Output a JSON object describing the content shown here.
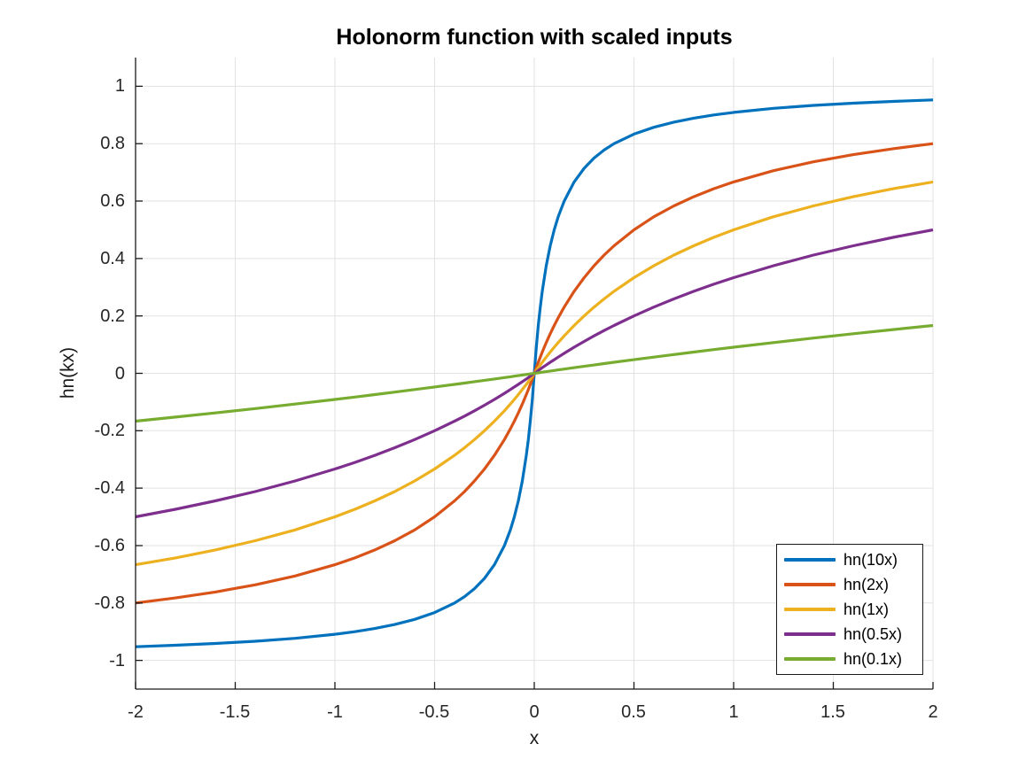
{
  "chart_data": {
    "type": "line",
    "title": "Holonorm function with scaled inputs",
    "xlabel": "x",
    "ylabel": "hn(kx)",
    "xlim": [
      -2,
      2
    ],
    "ylim": [
      -1.1,
      1.1
    ],
    "grid": true,
    "grid_color": "#e2e2e2",
    "axis_color": "#1a1a1a",
    "background_color": "#ffffff",
    "legend_position": "bottom-right",
    "x_ticks": [
      -2,
      -1.5,
      -1,
      -0.5,
      0,
      0.5,
      1,
      1.5,
      2
    ],
    "x_tick_labels": [
      "-2",
      "-1.5",
      "-1",
      "-0.5",
      "0",
      "0.5",
      "1",
      "1.5",
      "2"
    ],
    "y_ticks": [
      1,
      0.8,
      0.6,
      0.4,
      0.2,
      0,
      -0.2,
      -0.4,
      -0.6,
      -0.8,
      -1
    ],
    "y_tick_labels": [
      "1",
      "0.8",
      "0.6",
      "0.4",
      "0.2",
      "0",
      "-0.2",
      "-0.4",
      "-0.6",
      "-0.8",
      "-1"
    ],
    "x": [
      -2,
      -1.8,
      -1.6,
      -1.4,
      -1.2,
      -1,
      -0.9,
      -0.8,
      -0.7,
      -0.6,
      -0.5,
      -0.4,
      -0.35,
      -0.3,
      -0.25,
      -0.2,
      -0.15,
      -0.12,
      -0.1,
      -0.08,
      -0.06,
      -0.04,
      -0.03,
      -0.02,
      -0.01,
      0,
      0.01,
      0.02,
      0.03,
      0.04,
      0.06,
      0.08,
      0.1,
      0.12,
      0.15,
      0.2,
      0.25,
      0.3,
      0.35,
      0.4,
      0.5,
      0.6,
      0.7,
      0.8,
      0.9,
      1,
      1.2,
      1.4,
      1.6,
      1.8,
      2
    ],
    "series": [
      {
        "name": "hn(10x)",
        "k": 10,
        "color": "#0072BD",
        "values": [
          -0.9524,
          -0.9474,
          -0.9412,
          -0.9333,
          -0.9231,
          -0.9091,
          -0.9,
          -0.8889,
          -0.875,
          -0.8571,
          -0.8333,
          -0.8,
          -0.7778,
          -0.75,
          -0.7143,
          -0.6667,
          -0.6,
          -0.5455,
          -0.5,
          -0.4444,
          -0.375,
          -0.2857,
          -0.2308,
          -0.1667,
          -0.0909,
          0,
          0.0909,
          0.1667,
          0.2308,
          0.2857,
          0.375,
          0.4444,
          0.5,
          0.5455,
          0.6,
          0.6667,
          0.7143,
          0.75,
          0.7778,
          0.8,
          0.8333,
          0.8571,
          0.875,
          0.8889,
          0.9,
          0.9091,
          0.9231,
          0.9333,
          0.9412,
          0.9474,
          0.9524
        ]
      },
      {
        "name": "hn(2x)",
        "k": 2,
        "color": "#D95319",
        "values": [
          -0.8,
          -0.7826,
          -0.7619,
          -0.7368,
          -0.7059,
          -0.6667,
          -0.6429,
          -0.6154,
          -0.5833,
          -0.5455,
          -0.5,
          -0.4444,
          -0.4118,
          -0.375,
          -0.3333,
          -0.2857,
          -0.2308,
          -0.1935,
          -0.1667,
          -0.1379,
          -0.1071,
          -0.0741,
          -0.0566,
          -0.0385,
          -0.0196,
          0,
          0.0196,
          0.0385,
          0.0566,
          0.0741,
          0.1071,
          0.1379,
          0.1667,
          0.1935,
          0.2308,
          0.2857,
          0.3333,
          0.375,
          0.4118,
          0.4444,
          0.5,
          0.5455,
          0.5833,
          0.6154,
          0.6429,
          0.6667,
          0.7059,
          0.7368,
          0.7619,
          0.7826,
          0.8
        ]
      },
      {
        "name": "hn(1x)",
        "k": 1,
        "color": "#EDB120",
        "values": [
          -0.6667,
          -0.6429,
          -0.6154,
          -0.5833,
          -0.5455,
          -0.5,
          -0.4737,
          -0.4444,
          -0.4118,
          -0.375,
          -0.3333,
          -0.2857,
          -0.2593,
          -0.2308,
          -0.2,
          -0.1667,
          -0.1304,
          -0.1071,
          -0.0909,
          -0.0741,
          -0.0566,
          -0.0385,
          -0.0291,
          -0.0196,
          -0.0099,
          0,
          0.0099,
          0.0196,
          0.0291,
          0.0385,
          0.0566,
          0.0741,
          0.0909,
          0.1071,
          0.1304,
          0.1667,
          0.2,
          0.2308,
          0.2593,
          0.2857,
          0.3333,
          0.375,
          0.4118,
          0.4444,
          0.4737,
          0.5,
          0.5455,
          0.5833,
          0.6154,
          0.6429,
          0.6667
        ]
      },
      {
        "name": "hn(0.5x)",
        "k": 0.5,
        "color": "#7E2F8E",
        "values": [
          -0.5,
          -0.4737,
          -0.4444,
          -0.4118,
          -0.375,
          -0.3333,
          -0.3103,
          -0.2857,
          -0.2593,
          -0.2308,
          -0.2,
          -0.1667,
          -0.1489,
          -0.1304,
          -0.1111,
          -0.0909,
          -0.0698,
          -0.0566,
          -0.0476,
          -0.0385,
          -0.0291,
          -0.0196,
          -0.0148,
          -0.0099,
          -0.005,
          0,
          0.005,
          0.0099,
          0.0148,
          0.0196,
          0.0291,
          0.0385,
          0.0476,
          0.0566,
          0.0698,
          0.0909,
          0.1111,
          0.1304,
          0.1489,
          0.1667,
          0.2,
          0.2308,
          0.2593,
          0.2857,
          0.3103,
          0.3333,
          0.375,
          0.4118,
          0.4444,
          0.4737,
          0.5
        ]
      },
      {
        "name": "hn(0.1x)",
        "k": 0.1,
        "color": "#77AC30",
        "values": [
          -0.1667,
          -0.1525,
          -0.1379,
          -0.1228,
          -0.1071,
          -0.0909,
          -0.0826,
          -0.0741,
          -0.0654,
          -0.0566,
          -0.0476,
          -0.0385,
          -0.0338,
          -0.0291,
          -0.0244,
          -0.0196,
          -0.0148,
          -0.0119,
          -0.0099,
          -0.0079,
          -0.006,
          -0.004,
          -0.003,
          -0.002,
          -0.001,
          0,
          0.001,
          0.002,
          0.003,
          0.004,
          0.006,
          0.0079,
          0.0099,
          0.0119,
          0.0148,
          0.0196,
          0.0244,
          0.0291,
          0.0338,
          0.0385,
          0.0476,
          0.0566,
          0.0654,
          0.0741,
          0.0826,
          0.0909,
          0.1071,
          0.1228,
          0.1379,
          0.1525,
          0.1667
        ]
      }
    ]
  }
}
